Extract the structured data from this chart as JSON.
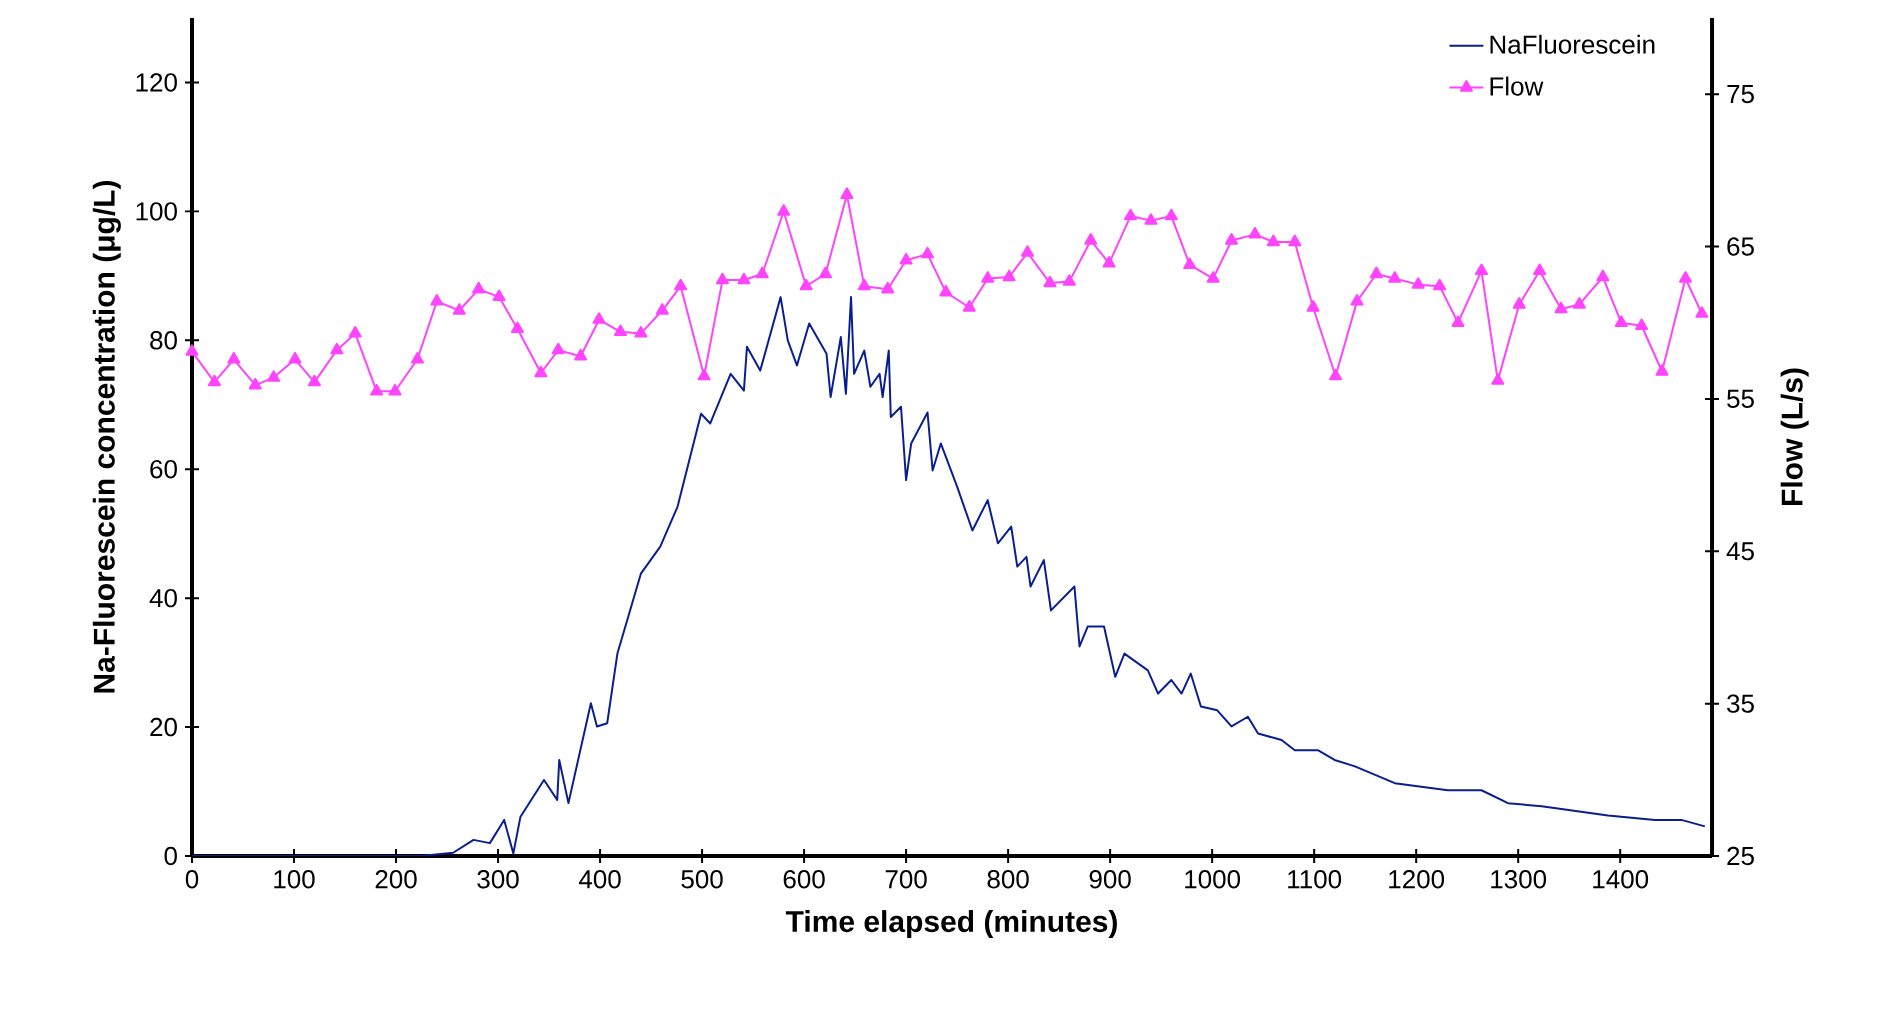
{
  "chart_data": {
    "type": "line",
    "xlabel": "Time elapsed (minutes)",
    "ylabel": "Na-Fluorescein concentration (μg/L)",
    "y2label": "Flow (L/s)",
    "xlim": [
      0,
      1490
    ],
    "xticks": [
      0,
      100,
      200,
      300,
      400,
      500,
      600,
      700,
      800,
      900,
      1000,
      1100,
      1200,
      1300,
      1400
    ],
    "ylim": [
      0,
      130
    ],
    "yticks": [
      0,
      20,
      40,
      60,
      80,
      100,
      120
    ],
    "y2lim": [
      25,
      80
    ],
    "y2ticks": [
      25,
      35,
      45,
      55,
      65,
      75
    ],
    "legend": "top right",
    "grid": false,
    "series": [
      {
        "name": "NaFluorescein",
        "color": "#0a1f8f",
        "marker": "none",
        "x": [
          0,
          224,
          256,
          276,
          292,
          306,
          315,
          322,
          345,
          358,
          360,
          369,
          391,
          397,
          407,
          417,
          440,
          459,
          476,
          499,
          508,
          528,
          541,
          544,
          557,
          577,
          584,
          593,
          605,
          622,
          626,
          636,
          641,
          646,
          649,
          659,
          665,
          674,
          677,
          683,
          685,
          695,
          700,
          705,
          721,
          726,
          734,
          750,
          765,
          780,
          790,
          803,
          809,
          818,
          822,
          835,
          842,
          865,
          870,
          878,
          894,
          905,
          914,
          937,
          947,
          960,
          970,
          979,
          989,
          1005,
          1019,
          1035,
          1045,
          1068,
          1081,
          1104,
          1120,
          1140,
          1179,
          1231,
          1264,
          1290,
          1323,
          1388,
          1434,
          1460,
          1483
        ],
        "values": [
          0,
          0,
          0.5,
          2.5,
          2,
          5.6,
          0.4,
          6.1,
          11.8,
          8.7,
          14.9,
          8.2,
          23.7,
          20.1,
          20.6,
          31.4,
          43.8,
          48,
          54.2,
          68.6,
          67.1,
          74.8,
          72.2,
          79,
          75.3,
          86.7,
          80,
          76.1,
          82.6,
          77.9,
          71.2,
          80.5,
          71.7,
          86.7,
          74.8,
          78.4,
          72.8,
          74.8,
          71.2,
          78.4,
          68.1,
          69.7,
          58.3,
          64,
          68.8,
          59.8,
          64,
          57.3,
          50.5,
          55.2,
          48.5,
          51.1,
          44.9,
          46.4,
          41.8,
          45.9,
          38.1,
          41.8,
          32.5,
          35.6,
          35.6,
          27.8,
          31.4,
          28.8,
          25.2,
          27.3,
          25.2,
          28.3,
          23.2,
          22.6,
          20.1,
          21.6,
          19,
          18,
          16.4,
          16.4,
          14.9,
          13.9,
          11.3,
          10.2,
          10.2,
          8.2,
          7.7,
          6.3,
          5.6,
          5.6,
          4.6
        ]
      },
      {
        "name": "Flow",
        "color": "#ff44ff",
        "marker": "triangle",
        "axis": "y2",
        "x": [
          0,
          22,
          41,
          62,
          80,
          101,
          120,
          142,
          160,
          181,
          199,
          221,
          240,
          262,
          281,
          301,
          319,
          342,
          359,
          381,
          399,
          420,
          440,
          461,
          479,
          502,
          520,
          541,
          559,
          580,
          602,
          621,
          642,
          659,
          682,
          700,
          721,
          739,
          762,
          780,
          801,
          819,
          841,
          860,
          881,
          899,
          920,
          940,
          960,
          978,
          1001,
          1019,
          1042,
          1060,
          1081,
          1099,
          1121,
          1142,
          1161,
          1179,
          1202,
          1223,
          1241,
          1264,
          1280,
          1301,
          1321,
          1342,
          1360,
          1383,
          1401,
          1421,
          1441,
          1464,
          1480
        ],
        "values": [
          58.1,
          56.1,
          57.6,
          55.9,
          56.4,
          57.6,
          56.1,
          58.2,
          59.3,
          55.5,
          55.5,
          57.6,
          61.4,
          60.8,
          62.2,
          61.7,
          59.6,
          56.7,
          58.2,
          57.8,
          60.2,
          59.4,
          59.3,
          60.8,
          62.4,
          56.5,
          62.8,
          62.8,
          63.2,
          67.3,
          62.4,
          63.2,
          68.4,
          62.4,
          62.2,
          64.1,
          64.5,
          62,
          61,
          62.9,
          63,
          64.6,
          62.6,
          62.7,
          65.4,
          63.9,
          67,
          66.7,
          67,
          63.8,
          62.9,
          65.4,
          65.8,
          65.3,
          65.3,
          61,
          56.5,
          61.4,
          63.2,
          62.9,
          62.5,
          62.4,
          60,
          63.4,
          56.2,
          61.2,
          63.4,
          60.9,
          61.2,
          63,
          60,
          59.8,
          56.8,
          62.9,
          60.6
        ]
      }
    ]
  }
}
